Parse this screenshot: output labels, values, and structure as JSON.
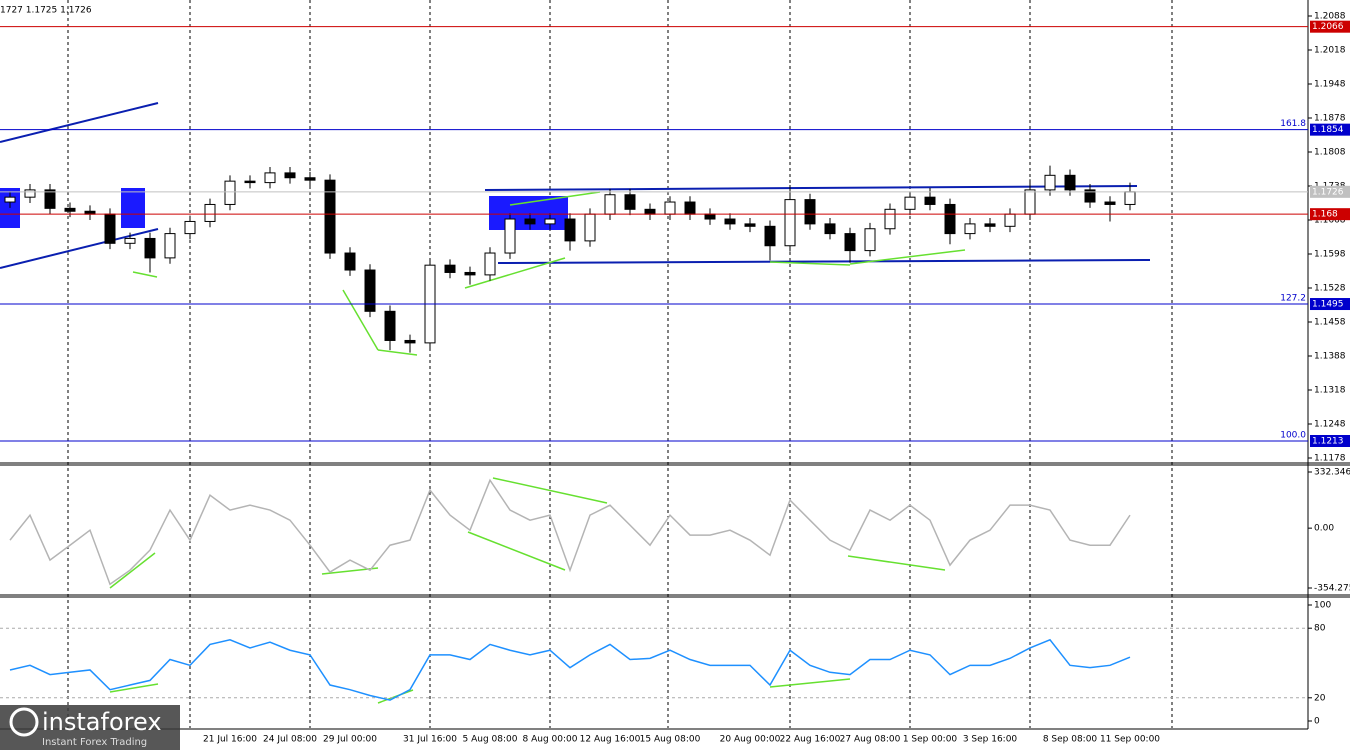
{
  "ohlc_header": "1727 1.1725 1.1726",
  "logo": {
    "name": "instaforex",
    "tagline": "Instant Forex Trading"
  },
  "chart_data": [
    {
      "type": "candlestick",
      "categories": [
        null,
        null,
        null,
        null,
        null,
        null,
        null,
        null,
        null,
        null,
        null,
        "21 Jul 16:00",
        null,
        null,
        "24 Jul 08:00",
        null,
        null,
        "29 Jul 00:00",
        null,
        null,
        null,
        "31 Jul 16:00",
        null,
        null,
        "5 Aug 08:00",
        null,
        null,
        "8 Aug 00:00",
        null,
        null,
        "12 Aug 16:00",
        null,
        null,
        "15 Aug 08:00",
        null,
        null,
        null,
        "20 Aug 00:00",
        null,
        null,
        "22 Aug 16:00",
        null,
        null,
        "27 Aug 08:00",
        null,
        null,
        "1 Sep 00:00",
        null,
        null,
        "3 Sep 16:00",
        null,
        null,
        null,
        "8 Sep 08:00",
        null,
        null,
        "11 Sep 00:00"
      ],
      "open": [
        1.1705,
        1.1715,
        1.173,
        1.1692,
        1.1686,
        1.168,
        1.162,
        1.163,
        1.159,
        1.164,
        1.1665,
        1.17,
        1.1748,
        1.1745,
        1.1765,
        1.1755,
        1.175,
        1.16,
        1.1565,
        1.148,
        1.142,
        1.1415,
        1.1575,
        1.156,
        1.1555,
        1.16,
        1.167,
        1.166,
        1.167,
        1.1625,
        1.168,
        1.172,
        1.169,
        1.168,
        1.1705,
        1.168,
        1.167,
        1.166,
        1.1655,
        1.1615,
        1.171,
        1.166,
        1.164,
        1.1605,
        1.165,
        1.169,
        1.1715,
        1.17,
        1.164,
        1.166,
        1.1655,
        1.168,
        1.173,
        1.176,
        1.173,
        1.1705,
        1.17
      ],
      "high": [
        1.1727,
        1.1742,
        1.1742,
        1.1704,
        1.1698,
        1.1692,
        1.1642,
        1.1642,
        1.1652,
        1.1677,
        1.1712,
        1.176,
        1.176,
        1.1777,
        1.1777,
        1.1767,
        1.1762,
        1.1612,
        1.1577,
        1.1492,
        1.1432,
        1.1587,
        1.1587,
        1.1572,
        1.1612,
        1.1682,
        1.1682,
        1.1682,
        1.1682,
        1.1692,
        1.1732,
        1.1732,
        1.1702,
        1.1717,
        1.1717,
        1.1692,
        1.1682,
        1.1672,
        1.1667,
        1.174,
        1.1722,
        1.1672,
        1.1652,
        1.1662,
        1.1702,
        1.1727,
        1.1734,
        1.1712,
        1.1672,
        1.1672,
        1.1692,
        1.1752,
        1.178,
        1.1772,
        1.1742,
        1.1717,
        1.1745
      ],
      "low": [
        1.1693,
        1.1703,
        1.168,
        1.1674,
        1.1668,
        1.1608,
        1.1608,
        1.156,
        1.1578,
        1.1628,
        1.1653,
        1.1688,
        1.1733,
        1.1733,
        1.1743,
        1.1738,
        1.1588,
        1.1553,
        1.1468,
        1.14,
        1.1395,
        1.1403,
        1.1548,
        1.1535,
        1.1543,
        1.1588,
        1.1648,
        1.1648,
        1.1605,
        1.1613,
        1.1668,
        1.1678,
        1.1668,
        1.1668,
        1.1668,
        1.1658,
        1.1648,
        1.1643,
        1.1585,
        1.1603,
        1.1648,
        1.1628,
        1.158,
        1.1593,
        1.1638,
        1.1678,
        1.1688,
        1.1618,
        1.1628,
        1.1643,
        1.1643,
        1.1668,
        1.1718,
        1.1718,
        1.1693,
        1.1665,
        1.1688
      ],
      "close": [
        1.1715,
        1.173,
        1.1692,
        1.1686,
        1.168,
        1.162,
        1.163,
        1.159,
        1.164,
        1.1665,
        1.17,
        1.1748,
        1.1745,
        1.1765,
        1.1755,
        1.175,
        1.16,
        1.1565,
        1.148,
        1.142,
        1.1415,
        1.1575,
        1.156,
        1.1555,
        1.16,
        1.167,
        1.166,
        1.167,
        1.1625,
        1.168,
        1.172,
        1.169,
        1.168,
        1.1705,
        1.168,
        1.167,
        1.166,
        1.1655,
        1.1615,
        1.171,
        1.166,
        1.164,
        1.1605,
        1.165,
        1.169,
        1.1715,
        1.17,
        1.164,
        1.166,
        1.1655,
        1.168,
        1.173,
        1.176,
        1.173,
        1.1705,
        1.17,
        1.1726
      ],
      "up_color": "#ffffff",
      "down_color": "#000000",
      "ylim": [
        1.1178,
        1.2088
      ],
      "yticks": [
        1.1178,
        1.1248,
        1.1318,
        1.1388,
        1.1458,
        1.1528,
        1.1598,
        1.1668,
        1.1738,
        1.1808,
        1.1878,
        1.1948,
        1.2018,
        1.2088
      ],
      "levels": [
        {
          "value": 1.2066,
          "color": "#cc0000"
        },
        {
          "value": 1.1854,
          "color": "#0000cc",
          "fib": "161.8"
        },
        {
          "value": 1.1726,
          "color": "#c0c0c0"
        },
        {
          "value": 1.168,
          "color": "#cc0000"
        },
        {
          "value": 1.1495,
          "color": "#0000cc",
          "fib": "127.2"
        },
        {
          "value": 1.1213,
          "color": "#0000cc",
          "fib": "100.0"
        }
      ]
    },
    {
      "type": "line",
      "color": "#b4b4b4",
      "values": [
        -71,
        77,
        -189,
        -101,
        -12,
        -332,
        -249,
        -130,
        107,
        -71,
        195,
        107,
        136,
        107,
        47,
        -101,
        -260,
        -189,
        -249,
        -101,
        -71,
        225,
        77,
        -12,
        284,
        107,
        47,
        77,
        -249,
        77,
        136,
        18,
        -101,
        77,
        -41,
        -41,
        -12,
        -71,
        -160,
        166,
        47,
        -71,
        -130,
        107,
        47,
        136,
        47,
        -219,
        -71,
        -12,
        136,
        136,
        107,
        -71,
        -101,
        -101,
        77
      ],
      "ylim": [
        -354.2759,
        332.3467
      ],
      "yticks": [
        332.3467,
        {
          "value": 0,
          "label": "0.00"
        },
        -354.2759
      ]
    },
    {
      "type": "line",
      "color": "#1e90ff",
      "values": [
        44,
        48,
        40,
        42,
        44,
        27,
        31,
        35,
        53,
        48,
        66,
        70,
        63,
        68,
        61,
        57,
        31,
        27,
        22,
        18,
        27,
        57,
        57,
        53,
        66,
        61,
        57,
        61,
        46,
        57,
        66,
        53,
        54,
        61,
        53,
        48,
        48,
        48,
        31,
        61,
        48,
        42,
        40,
        53,
        53,
        61,
        57,
        40,
        48,
        48,
        54,
        63,
        70,
        48,
        46,
        48,
        55
      ],
      "ylim": [
        0,
        100
      ],
      "yticks": [
        100,
        80,
        20,
        0
      ],
      "grid": true
    }
  ]
}
